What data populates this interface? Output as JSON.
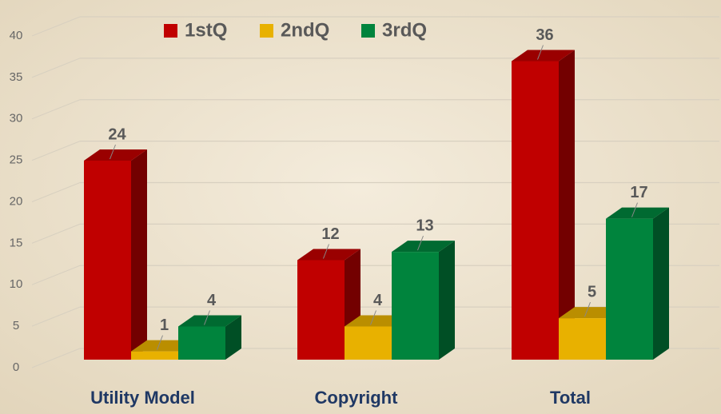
{
  "chart_data": {
    "type": "bar3d",
    "categories": [
      "Utility Model",
      "Copyright",
      "Total"
    ],
    "series": [
      {
        "name": "1stQ",
        "color": "#c00000",
        "values": [
          24,
          12,
          36
        ]
      },
      {
        "name": "2ndQ",
        "color": "#e8b100",
        "values": [
          1,
          4,
          5
        ]
      },
      {
        "name": "3rdQ",
        "color": "#00843d",
        "values": [
          4,
          13,
          17
        ]
      }
    ],
    "ylim": [
      0,
      40
    ],
    "yticks": [
      0,
      5,
      10,
      15,
      20,
      25,
      30,
      35,
      40
    ],
    "grid": true,
    "legend": "top",
    "data_labels": true
  }
}
